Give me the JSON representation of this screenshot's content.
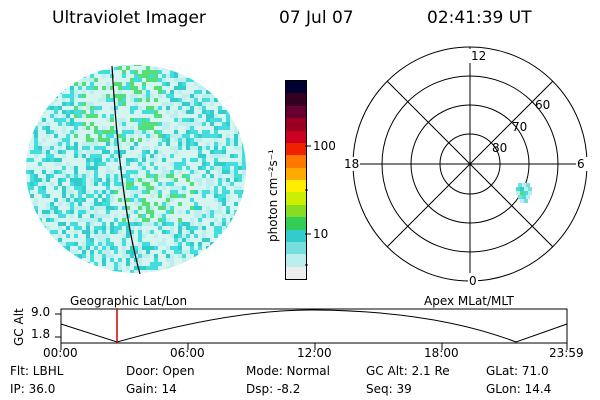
{
  "header": {
    "title": "Ultraviolet Imager",
    "date": "07 Jul 07",
    "time": "02:41:39 UT"
  },
  "colorbar": {
    "unit_label": "photon cm⁻²s⁻¹",
    "ticks": [
      "100",
      "10"
    ],
    "colors": [
      "#000033",
      "#330022",
      "#660033",
      "#990022",
      "#cc0022",
      "#ee2200",
      "#ff7700",
      "#ffaa00",
      "#ffee00",
      "#ccee00",
      "#88dd22",
      "#33cc55",
      "#33cccc",
      "#77dddd",
      "#bbeeee",
      "#eeeeee"
    ]
  },
  "image_colors": {
    "background": "#d6f5f0",
    "light": "#bfeeee",
    "cyan": "#44dddd",
    "teal": "#33cccc",
    "green": "#55dd77"
  },
  "polar": {
    "labels": {
      "top": "12",
      "bottom": "0",
      "left": "18",
      "right": "6"
    },
    "lat_labels": [
      "60",
      "70",
      "80"
    ]
  },
  "timeline": {
    "left_label": "Geographic Lat/Lon",
    "right_label": "Apex MLat/MLT",
    "y_axis_label": "GC Alt",
    "y_ticks": [
      "9.0",
      "1.8"
    ],
    "x_ticks": [
      "00:00",
      "06:00",
      "12:00",
      "18:00",
      "23:59"
    ]
  },
  "info": {
    "row1": [
      "Flt: LBHL",
      "Door: Open",
      "Mode: Normal",
      "GC Alt: 2.1 Re",
      "GLat:  71.0"
    ],
    "row2": [
      "IP: 36.0",
      "Gain: 14",
      "Dsp:    -8.2",
      "Seq: 39",
      "GLon:  14.4"
    ]
  }
}
